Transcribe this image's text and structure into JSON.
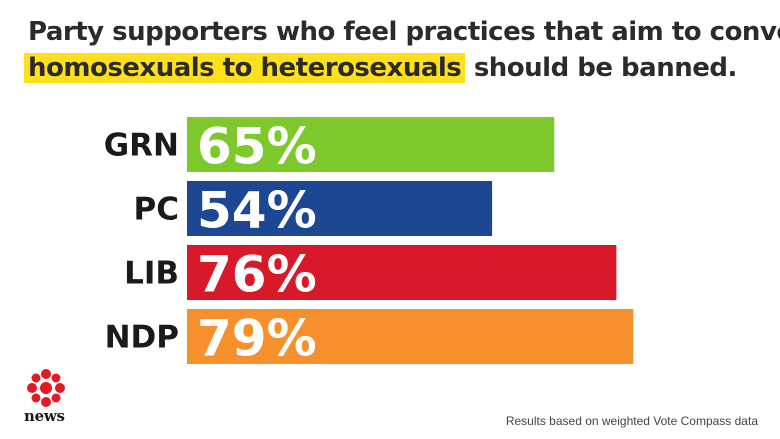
{
  "title": {
    "line1": "Party supporters who feel practices that aim to convert",
    "highlight": "homosexuals to heterosexuals",
    "rest": " should be banned."
  },
  "chart_data": {
    "type": "bar",
    "orientation": "horizontal",
    "categories": [
      "GRN",
      "PC",
      "LIB",
      "NDP"
    ],
    "values": [
      65,
      54,
      76,
      79
    ],
    "value_labels": [
      "65%",
      "54%",
      "76%",
      "79%"
    ],
    "colors": [
      "#7dc92b",
      "#1d4693",
      "#d7192a",
      "#f6902d"
    ],
    "xlim": [
      0,
      100
    ],
    "grid": false,
    "legend": "none"
  },
  "brand": {
    "name": "news"
  },
  "footer": {
    "source": "Results based on weighted Vote Compass data"
  }
}
